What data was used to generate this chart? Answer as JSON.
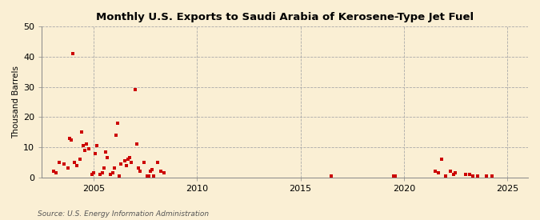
{
  "title": "Monthly U.S. Exports to Saudi Arabia of Kerosene-Type Jet Fuel",
  "ylabel": "Thousand Barrels",
  "source": "Source: U.S. Energy Information Administration",
  "background_color": "#faefd4",
  "marker_color": "#cc0000",
  "xlim": [
    2002.5,
    2026.0
  ],
  "ylim": [
    0,
    50
  ],
  "yticks": [
    0,
    10,
    20,
    30,
    40,
    50
  ],
  "xticks": [
    2005,
    2010,
    2015,
    2020,
    2025
  ],
  "data_points": [
    [
      2003.08,
      2.0
    ],
    [
      2003.17,
      1.5
    ],
    [
      2003.33,
      5.0
    ],
    [
      2003.58,
      4.5
    ],
    [
      2003.75,
      3.0
    ],
    [
      2003.83,
      13.0
    ],
    [
      2003.92,
      12.5
    ],
    [
      2004.0,
      41.0
    ],
    [
      2004.08,
      5.0
    ],
    [
      2004.17,
      4.0
    ],
    [
      2004.33,
      6.0
    ],
    [
      2004.42,
      15.0
    ],
    [
      2004.5,
      10.5
    ],
    [
      2004.58,
      9.0
    ],
    [
      2004.67,
      11.0
    ],
    [
      2004.75,
      9.5
    ],
    [
      2004.92,
      1.0
    ],
    [
      2005.0,
      1.5
    ],
    [
      2005.08,
      8.0
    ],
    [
      2005.17,
      10.5
    ],
    [
      2005.33,
      1.0
    ],
    [
      2005.42,
      1.5
    ],
    [
      2005.5,
      3.0
    ],
    [
      2005.58,
      8.5
    ],
    [
      2005.67,
      6.5
    ],
    [
      2005.83,
      1.0
    ],
    [
      2005.92,
      1.5
    ],
    [
      2006.0,
      3.0
    ],
    [
      2006.08,
      14.0
    ],
    [
      2006.17,
      18.0
    ],
    [
      2006.25,
      0.5
    ],
    [
      2006.33,
      4.5
    ],
    [
      2006.5,
      5.5
    ],
    [
      2006.58,
      4.0
    ],
    [
      2006.67,
      6.0
    ],
    [
      2006.75,
      6.5
    ],
    [
      2006.83,
      5.0
    ],
    [
      2007.0,
      29.0
    ],
    [
      2007.08,
      11.0
    ],
    [
      2007.17,
      3.0
    ],
    [
      2007.25,
      2.0
    ],
    [
      2007.42,
      5.0
    ],
    [
      2007.58,
      0.5
    ],
    [
      2007.67,
      0.5
    ],
    [
      2007.75,
      2.0
    ],
    [
      2007.83,
      2.5
    ],
    [
      2007.92,
      0.5
    ],
    [
      2008.08,
      5.0
    ],
    [
      2008.25,
      2.0
    ],
    [
      2008.42,
      1.5
    ],
    [
      2016.5,
      0.5
    ],
    [
      2019.5,
      0.5
    ],
    [
      2019.58,
      0.5
    ],
    [
      2021.5,
      2.0
    ],
    [
      2021.67,
      1.5
    ],
    [
      2021.83,
      6.0
    ],
    [
      2022.0,
      0.5
    ],
    [
      2022.25,
      2.0
    ],
    [
      2022.42,
      1.0
    ],
    [
      2022.5,
      1.5
    ],
    [
      2023.0,
      1.0
    ],
    [
      2023.17,
      1.0
    ],
    [
      2023.33,
      0.5
    ],
    [
      2023.58,
      0.5
    ],
    [
      2024.0,
      0.5
    ],
    [
      2024.25,
      0.5
    ]
  ]
}
